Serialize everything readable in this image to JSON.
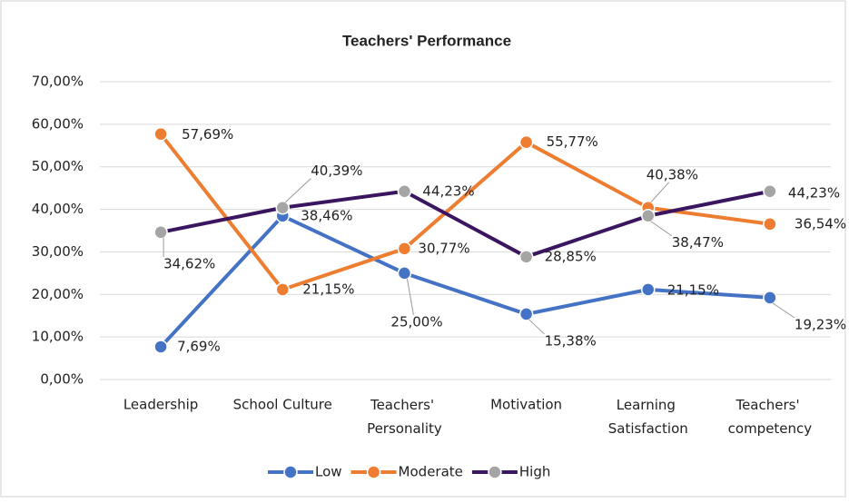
{
  "chart_data": {
    "type": "line",
    "title": "Teachers' Performance",
    "categories": [
      "Leadership",
      "School Culture",
      "Teachers' Personality",
      "Motivation",
      "Learning Satisfaction",
      "Teachers' competency"
    ],
    "series": [
      {
        "name": "Low",
        "color": "#4472c4",
        "marker_color": "#4472c4",
        "values": [
          7.69,
          38.46,
          25.0,
          15.38,
          21.15,
          19.23
        ],
        "value_labels": [
          "7,69%",
          "38,46%",
          "25,00%",
          "15,38%",
          "21,15%",
          "19,23%"
        ]
      },
      {
        "name": "Moderate",
        "color": "#ed7d31",
        "marker_color": "#ed7d31",
        "values": [
          57.69,
          21.15,
          30.77,
          55.77,
          40.38,
          36.54
        ],
        "value_labels": [
          "57,69%",
          "21,15%",
          "30,77%",
          "55,77%",
          "40,38%",
          "36,54%"
        ]
      },
      {
        "name": "High",
        "color": "#3b1660",
        "marker_color": "#a5a5a5",
        "values": [
          34.62,
          40.39,
          44.23,
          28.85,
          38.47,
          44.23
        ],
        "value_labels": [
          "34,62%",
          "40,39%",
          "44,23%",
          "28,85%",
          "38,47%",
          "44,23%"
        ]
      }
    ],
    "ylim": [
      0,
      70
    ],
    "yticks": [
      {
        "value": 0,
        "label": "0,00%"
      },
      {
        "value": 10,
        "label": "10,00%"
      },
      {
        "value": 20,
        "label": "20,00%"
      },
      {
        "value": 30,
        "label": "30,00%"
      },
      {
        "value": 40,
        "label": "40,00%"
      },
      {
        "value": 50,
        "label": "50,00%"
      },
      {
        "value": 60,
        "label": "60,00%"
      },
      {
        "value": 70,
        "label": "70,00%"
      }
    ],
    "grid": true,
    "legend": "bottom"
  }
}
